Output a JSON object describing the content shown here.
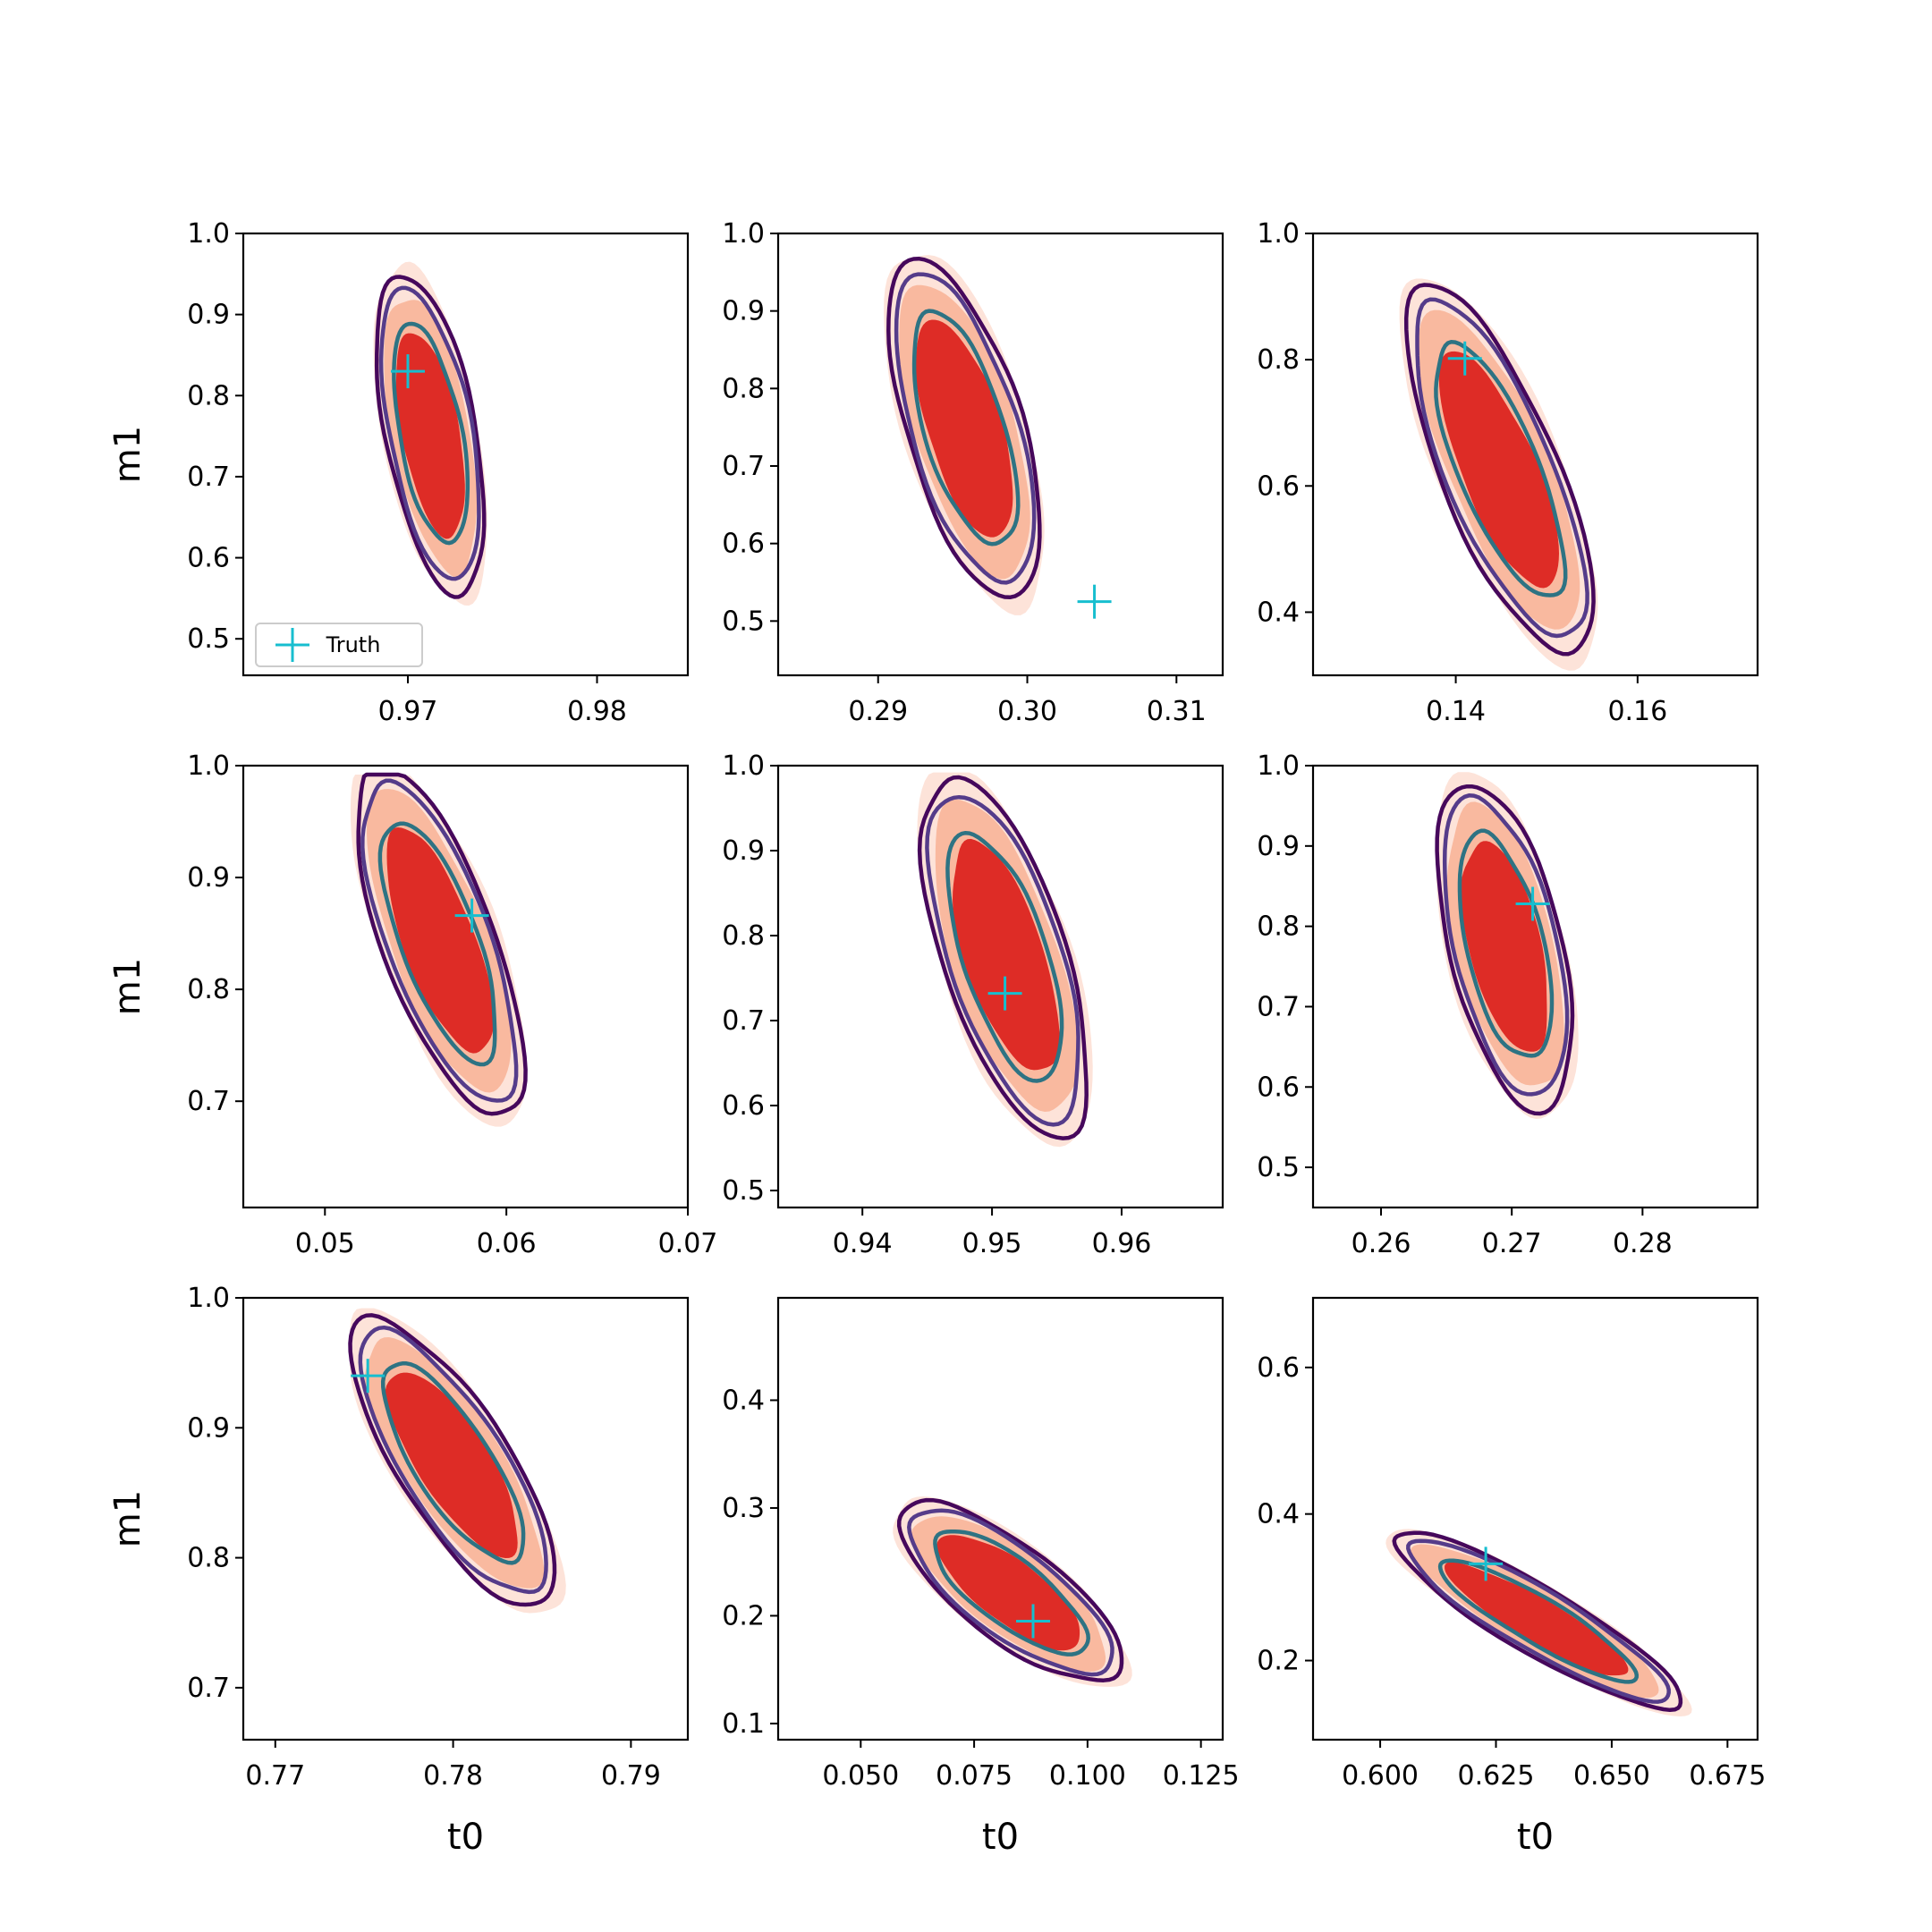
{
  "colors": {
    "fill_outer": "#fde3d9",
    "fill_mid": "#f9b99f",
    "fill_inner": "#de2c26",
    "line_outer": "#46085c",
    "line_mid": "#553c8a",
    "line_inner": "#2e7383",
    "truth": "#17becf",
    "frame": "#000000"
  },
  "legend": {
    "label": "Truth",
    "marker": "plus-icon",
    "location": "lower left",
    "panel": 0
  },
  "chart_data": [
    {
      "type": "contour",
      "panel": 1,
      "xlabel": "",
      "ylabel": "m1",
      "xlim": [
        0.9613,
        0.9848
      ],
      "ylim": [
        0.455,
        1.0
      ],
      "xticks": [
        "0.97",
        "0.98"
      ],
      "yticks": [
        "0.5",
        "0.6",
        "0.7",
        "0.8",
        "0.9",
        "1.0"
      ],
      "truth": [
        0.97,
        0.83
      ],
      "posterior": {
        "center": [
          0.9712,
          0.753
        ],
        "axis": [
          0.00108,
          -0.147
        ],
        "width": 0.00182,
        "top_clip": 1.0
      }
    },
    {
      "type": "contour",
      "panel": 2,
      "xlabel": "",
      "ylabel": "",
      "xlim": [
        0.2833,
        0.3131
      ],
      "ylim": [
        0.43,
        1.0
      ],
      "xticks": [
        "0.29",
        "0.30",
        "0.31"
      ],
      "yticks": [
        "0.5",
        "0.6",
        "0.7",
        "0.8",
        "0.9",
        "1.0"
      ],
      "truth": [
        0.3045,
        0.525
      ],
      "posterior": {
        "center": [
          0.2958,
          0.748
        ],
        "axis": [
          0.00228,
          -0.163
        ],
        "width": 0.00302,
        "top_clip": 1.0
      }
    },
    {
      "type": "contour",
      "panel": 3,
      "xlabel": "",
      "ylabel": "",
      "xlim": [
        0.1243,
        0.1732
      ],
      "ylim": [
        0.3,
        1.0
      ],
      "xticks": [
        "0.14",
        "0.16"
      ],
      "yticks": [
        "0.4",
        "0.6",
        "0.8",
        "1.0"
      ],
      "truth": [
        0.141,
        0.802
      ],
      "posterior": {
        "center": [
          0.1448,
          0.625
        ],
        "axis": [
          0.00568,
          -0.218
        ],
        "width": 0.00515,
        "top_clip": 1.0
      }
    },
    {
      "type": "contour",
      "panel": 4,
      "xlabel": "",
      "ylabel": "m1",
      "xlim": [
        0.0455,
        0.07
      ],
      "ylim": [
        0.605,
        1.0
      ],
      "xticks": [
        "0.05",
        "0.06",
        "0.07"
      ],
      "yticks": [
        "0.7",
        "0.8",
        "0.9",
        "1.0"
      ],
      "truth": [
        0.0581,
        0.866
      ],
      "posterior": {
        "center": [
          0.0563,
          0.843
        ],
        "axis": [
          0.0024,
          -0.117
        ],
        "width": 0.00245,
        "top_clip": 1.0
      }
    },
    {
      "type": "contour",
      "panel": 5,
      "xlabel": "",
      "ylabel": "",
      "xlim": [
        0.9335,
        0.9678
      ],
      "ylim": [
        0.48,
        1.0
      ],
      "xticks": [
        "0.94",
        "0.95",
        "0.96"
      ],
      "yticks": [
        "0.5",
        "0.6",
        "0.7",
        "0.8",
        "0.9",
        "1.0"
      ],
      "truth": [
        0.951,
        0.732
      ],
      "posterior": {
        "center": [
          0.951,
          0.775
        ],
        "axis": [
          0.00298,
          -0.158
        ],
        "width": 0.00372,
        "top_clip": 1.0
      }
    },
    {
      "type": "contour",
      "panel": 6,
      "xlabel": "",
      "ylabel": "",
      "xlim": [
        0.2548,
        0.2888
      ],
      "ylim": [
        0.45,
        1.0
      ],
      "xticks": [
        "0.26",
        "0.27",
        "0.28"
      ],
      "yticks": [
        "0.5",
        "0.6",
        "0.7",
        "0.8",
        "0.9",
        "1.0"
      ],
      "truth": [
        0.2716,
        0.828
      ],
      "posterior": {
        "center": [
          0.2695,
          0.775
        ],
        "axis": [
          0.00195,
          -0.152
        ],
        "width": 0.0033,
        "top_clip": 1.0
      }
    },
    {
      "type": "contour",
      "panel": 7,
      "xlabel": "t0",
      "ylabel": "m1",
      "xlim": [
        0.7682,
        0.7932
      ],
      "ylim": [
        0.66,
        1.0
      ],
      "xticks": [
        "0.77",
        "0.78",
        "0.79"
      ],
      "yticks": [
        "0.7",
        "0.8",
        "0.9",
        "1.0"
      ],
      "truth": [
        0.7752,
        0.94
      ],
      "posterior": {
        "center": [
          0.78,
          0.873
        ],
        "axis": [
          0.00333,
          -0.083
        ],
        "width": 0.0027,
        "top_clip": 1.0
      }
    },
    {
      "type": "contour",
      "panel": 8,
      "xlabel": "t0",
      "ylabel": "",
      "xlim": [
        0.0318,
        0.1298
      ],
      "ylim": [
        0.085,
        0.495
      ],
      "xticks": [
        "0.050",
        "0.075",
        "0.100",
        "0.125"
      ],
      "yticks": [
        "0.1",
        "0.2",
        "0.3",
        "0.4"
      ],
      "truth": [
        0.088,
        0.195
      ],
      "posterior": {
        "center": [
          0.083,
          0.222
        ],
        "axis": [
          0.0145,
          -0.062
        ],
        "width": 0.0115,
        "top_clip": null
      }
    },
    {
      "type": "contour",
      "panel": 9,
      "xlabel": "t0",
      "ylabel": "",
      "xlim": [
        0.5855,
        0.6815
      ],
      "ylim": [
        0.092,
        0.695
      ],
      "xticks": [
        "0.600",
        "0.625",
        "0.650",
        "0.675"
      ],
      "yticks": [
        "0.2",
        "0.4",
        "0.6"
      ],
      "truth": [
        0.6228,
        0.332
      ],
      "posterior": {
        "center": [
          0.634,
          0.255
        ],
        "axis": [
          0.021,
          -0.09
        ],
        "width": 0.0098,
        "top_clip": null
      }
    }
  ]
}
